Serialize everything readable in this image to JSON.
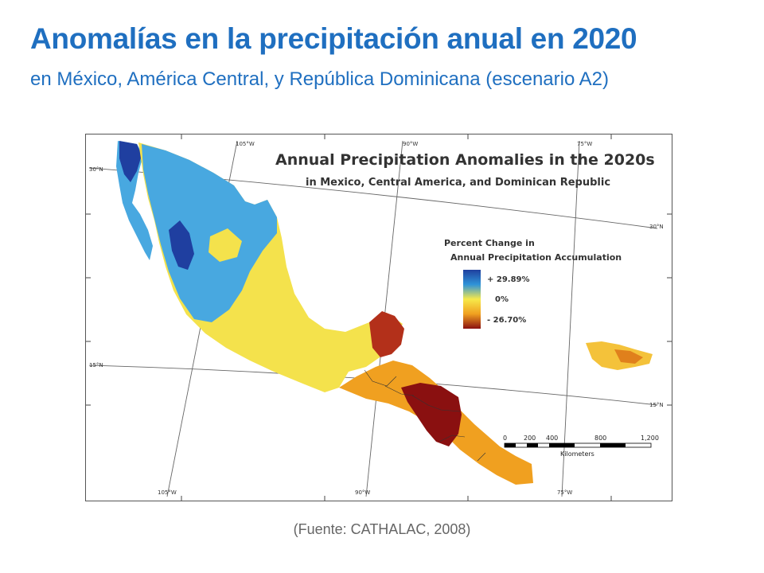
{
  "slide": {
    "title": "Anomalías en la precipitación anual en 2020",
    "subtitle": "en México, América Central, y República Dominicana (escenario A2)",
    "source": "(Fuente: CATHALAC, 2008)"
  },
  "map": {
    "title": "Annual Precipitation Anomalies in the 2020s",
    "subtitle": "in Mexico, Central America, and Dominican Republic",
    "graticule": {
      "top_labels": [
        "105°W",
        "90°W",
        "75°W"
      ],
      "bottom_labels": [
        "105°W",
        "90°W",
        "75°W"
      ],
      "left_labels": [
        "30°N",
        "15°N"
      ],
      "right_labels": [
        "30°N",
        "15°N"
      ]
    },
    "legend": {
      "title_line1": "Percent Change in",
      "title_line2": "Annual Precipitation Accumulation",
      "max_label": "+ 29.89%",
      "mid_label": "0%",
      "min_label": "- 26.70%",
      "max_value": 29.89,
      "min_value": -26.7,
      "colors": [
        "#1f3f9e",
        "#2f93d8",
        "#f7e94a",
        "#f0a020",
        "#8a1010"
      ]
    },
    "scale_bar": {
      "ticks": [
        "0",
        "200",
        "400",
        "800",
        "1,200"
      ],
      "unit": "Kilometers"
    }
  }
}
